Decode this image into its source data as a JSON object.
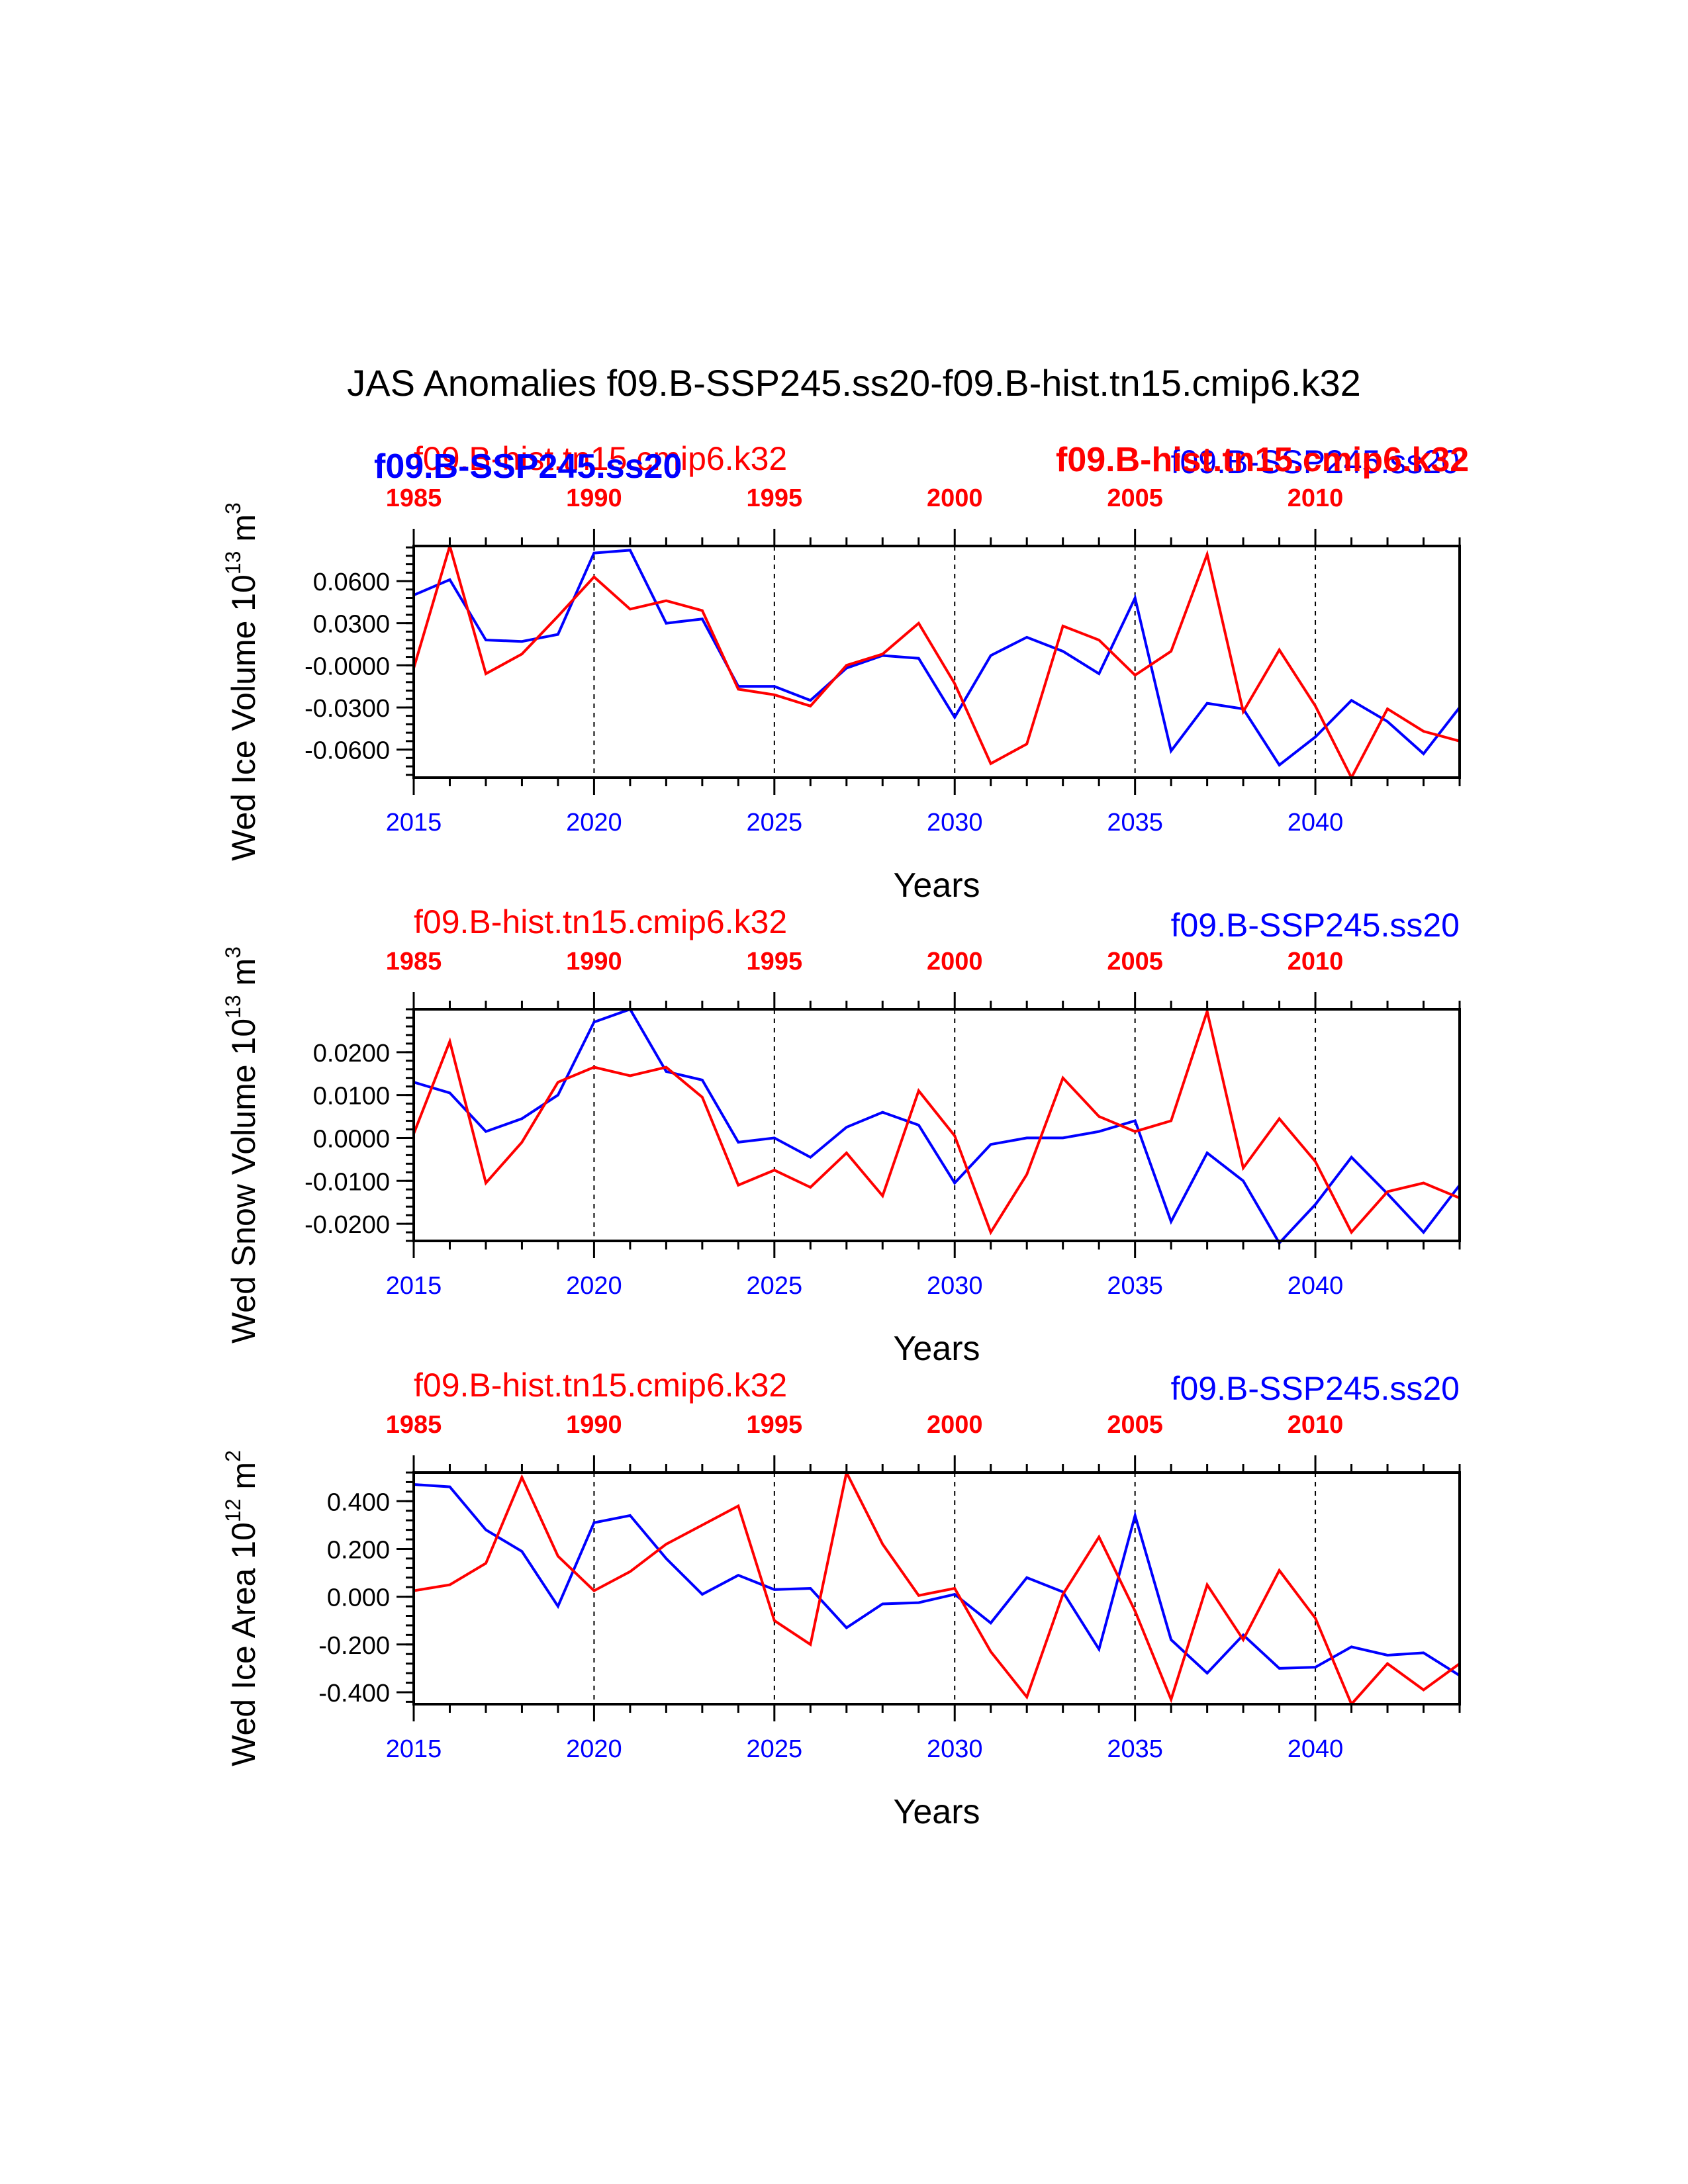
{
  "title": "JAS Anomalies f09.B-SSP245.ss20-f09.B-hist.tn15.cmip6.k32",
  "colors": {
    "ssp": "#0000ff",
    "hist": "#ff0000",
    "axis": "#000000"
  },
  "overlay_labels": {
    "blue_bold": "f09.B-SSP245.ss20",
    "red_bold": "f09.B-hist.tn15.cmip6.k32"
  },
  "chart_data": [
    {
      "type": "line",
      "ylabel": "Wed Ice Volume 10",
      "ylabel_exp": "13",
      "ylabel_unit": " m",
      "ylabel_unit_exp": "3",
      "xlabel": "Years",
      "bottom_ticks": [
        "2015",
        "2020",
        "2025",
        "2030",
        "2035",
        "2040"
      ],
      "top_ticks": [
        "1985",
        "1990",
        "1995",
        "2000",
        "2005",
        "2010"
      ],
      "y_ticks": [
        "0.0600",
        "0.0300",
        "-0.0000",
        "-0.0300",
        "-0.0600"
      ],
      "y_tick_values": [
        0.06,
        0.03,
        0.0,
        -0.03,
        -0.06
      ],
      "ylim": [
        -0.08,
        0.085
      ],
      "xlim": [
        2015,
        2044
      ],
      "grid": "dashed vertical at major x ticks",
      "top_left_label": "f09.B-hist.tn15.cmip6.k32",
      "top_right_label": "f09.B-SSP245.ss20",
      "series": [
        {
          "name": "f09.B-SSP245.ss20",
          "color": "#0000ff",
          "x": [
            2015,
            2016,
            2017,
            2018,
            2019,
            2020,
            2021,
            2022,
            2023,
            2024,
            2025,
            2026,
            2027,
            2028,
            2029,
            2030,
            2031,
            2032,
            2033,
            2034,
            2035,
            2036,
            2037,
            2038,
            2039,
            2040,
            2041,
            2042,
            2043,
            2044
          ],
          "values": [
            0.05,
            0.061,
            0.018,
            0.017,
            0.022,
            0.08,
            0.082,
            0.03,
            0.033,
            -0.015,
            -0.015,
            -0.025,
            -0.002,
            0.007,
            0.005,
            -0.037,
            0.007,
            0.02,
            0.01,
            -0.006,
            0.048,
            -0.061,
            -0.027,
            -0.031,
            -0.071,
            -0.051,
            -0.025,
            -0.04,
            -0.063,
            -0.03
          ]
        },
        {
          "name": "f09.B-hist.tn15.cmip6.k32",
          "color": "#ff0000",
          "x": [
            2015,
            2016,
            2017,
            2018,
            2019,
            2020,
            2021,
            2022,
            2023,
            2024,
            2025,
            2026,
            2027,
            2028,
            2029,
            2030,
            2031,
            2032,
            2033,
            2034,
            2035,
            2036,
            2037,
            2038,
            2039,
            2040,
            2041,
            2042,
            2043,
            2044
          ],
          "values": [
            -0.002,
            0.085,
            -0.006,
            0.008,
            0.035,
            0.063,
            0.04,
            0.046,
            0.039,
            -0.017,
            -0.021,
            -0.029,
            0.0,
            0.008,
            0.03,
            -0.013,
            -0.07,
            -0.056,
            0.028,
            0.018,
            -0.007,
            0.01,
            0.079,
            -0.033,
            0.011,
            -0.029,
            -0.08,
            -0.031,
            -0.047,
            -0.054
          ]
        }
      ]
    },
    {
      "type": "line",
      "ylabel": "Wed Snow Volume 10",
      "ylabel_exp": "13",
      "ylabel_unit": " m",
      "ylabel_unit_exp": "3",
      "xlabel": "Years",
      "bottom_ticks": [
        "2015",
        "2020",
        "2025",
        "2030",
        "2035",
        "2040"
      ],
      "top_ticks": [
        "1985",
        "1990",
        "1995",
        "2000",
        "2005",
        "2010"
      ],
      "y_ticks": [
        "0.0200",
        "0.0100",
        "0.0000",
        "-0.0100",
        "-0.0200"
      ],
      "y_tick_values": [
        0.02,
        0.01,
        0.0,
        -0.01,
        -0.02
      ],
      "ylim": [
        -0.024,
        0.03
      ],
      "xlim": [
        2015,
        2044
      ],
      "grid": "dashed vertical at major x ticks",
      "top_left_label": "f09.B-hist.tn15.cmip6.k32",
      "top_right_label": "f09.B-SSP245.ss20",
      "series": [
        {
          "name": "f09.B-SSP245.ss20",
          "color": "#0000ff",
          "x": [
            2015,
            2016,
            2017,
            2018,
            2019,
            2020,
            2021,
            2022,
            2023,
            2024,
            2025,
            2026,
            2027,
            2028,
            2029,
            2030,
            2031,
            2032,
            2033,
            2034,
            2035,
            2036,
            2037,
            2038,
            2039,
            2040,
            2041,
            2042,
            2043,
            2044
          ],
          "values": [
            0.013,
            0.0105,
            0.0015,
            0.0045,
            0.01,
            0.027,
            0.03,
            0.0155,
            0.0135,
            -0.001,
            0.0,
            -0.0045,
            0.0025,
            0.006,
            0.003,
            -0.0105,
            -0.0015,
            0.0,
            0.0,
            0.0015,
            0.004,
            -0.0195,
            -0.0035,
            -0.01,
            -0.0245,
            -0.0155,
            -0.0045,
            -0.013,
            -0.022,
            -0.011
          ]
        },
        {
          "name": "f09.B-hist.tn15.cmip6.k32",
          "color": "#ff0000",
          "x": [
            2015,
            2016,
            2017,
            2018,
            2019,
            2020,
            2021,
            2022,
            2023,
            2024,
            2025,
            2026,
            2027,
            2028,
            2029,
            2030,
            2031,
            2032,
            2033,
            2034,
            2035,
            2036,
            2037,
            2038,
            2039,
            2040,
            2041,
            2042,
            2043,
            2044
          ],
          "values": [
            0.001,
            0.0225,
            -0.0105,
            -0.001,
            0.013,
            0.0165,
            0.0145,
            0.0165,
            0.0095,
            -0.011,
            -0.0075,
            -0.0115,
            -0.0035,
            -0.0135,
            0.011,
            0.0005,
            -0.022,
            -0.0085,
            0.014,
            0.005,
            0.0015,
            0.004,
            0.0295,
            -0.007,
            0.0045,
            -0.0055,
            -0.022,
            -0.0125,
            -0.0105,
            -0.014
          ]
        }
      ]
    },
    {
      "type": "line",
      "ylabel": "Wed Ice Area 10",
      "ylabel_exp": "12",
      "ylabel_unit": " m",
      "ylabel_unit_exp": "2",
      "xlabel": "Years",
      "bottom_ticks": [
        "2015",
        "2020",
        "2025",
        "2030",
        "2035",
        "2040"
      ],
      "top_ticks": [
        "1985",
        "1990",
        "1995",
        "2000",
        "2005",
        "2010"
      ],
      "y_ticks": [
        "0.400",
        "0.200",
        "0.000",
        "-0.200",
        "-0.400"
      ],
      "y_tick_values": [
        0.4,
        0.2,
        0.0,
        -0.2,
        -0.4
      ],
      "ylim": [
        -0.45,
        0.52
      ],
      "xlim": [
        2015,
        2044
      ],
      "grid": "dashed vertical at major x ticks",
      "top_left_label": "f09.B-hist.tn15.cmip6.k32",
      "top_right_label": "f09.B-SSP245.ss20",
      "series": [
        {
          "name": "f09.B-SSP245.ss20",
          "color": "#0000ff",
          "x": [
            2015,
            2016,
            2017,
            2018,
            2019,
            2020,
            2021,
            2022,
            2023,
            2024,
            2025,
            2026,
            2027,
            2028,
            2029,
            2030,
            2031,
            2032,
            2033,
            2034,
            2035,
            2036,
            2037,
            2038,
            2039,
            2040,
            2041,
            2042,
            2043,
            2044
          ],
          "values": [
            0.47,
            0.46,
            0.28,
            0.19,
            -0.04,
            0.31,
            0.34,
            0.16,
            0.01,
            0.09,
            0.03,
            0.035,
            -0.13,
            -0.03,
            -0.025,
            0.01,
            -0.11,
            0.08,
            0.02,
            -0.22,
            0.34,
            -0.18,
            -0.32,
            -0.16,
            -0.3,
            -0.295,
            -0.21,
            -0.245,
            -0.235,
            -0.33
          ]
        },
        {
          "name": "f09.B-hist.tn15.cmip6.k32",
          "color": "#ff0000",
          "x": [
            2015,
            2016,
            2017,
            2018,
            2019,
            2020,
            2021,
            2022,
            2023,
            2024,
            2025,
            2026,
            2027,
            2028,
            2029,
            2030,
            2031,
            2032,
            2033,
            2034,
            2035,
            2036,
            2037,
            2038,
            2039,
            2040,
            2041,
            2042,
            2043,
            2044
          ],
          "values": [
            0.025,
            0.05,
            0.14,
            0.5,
            0.17,
            0.025,
            0.105,
            0.22,
            0.3,
            0.38,
            -0.1,
            -0.2,
            0.52,
            0.22,
            0.005,
            0.035,
            -0.23,
            -0.42,
            0.01,
            0.25,
            -0.06,
            -0.43,
            0.05,
            -0.18,
            0.11,
            -0.09,
            -0.45,
            -0.28,
            -0.39,
            -0.28
          ]
        }
      ]
    }
  ]
}
